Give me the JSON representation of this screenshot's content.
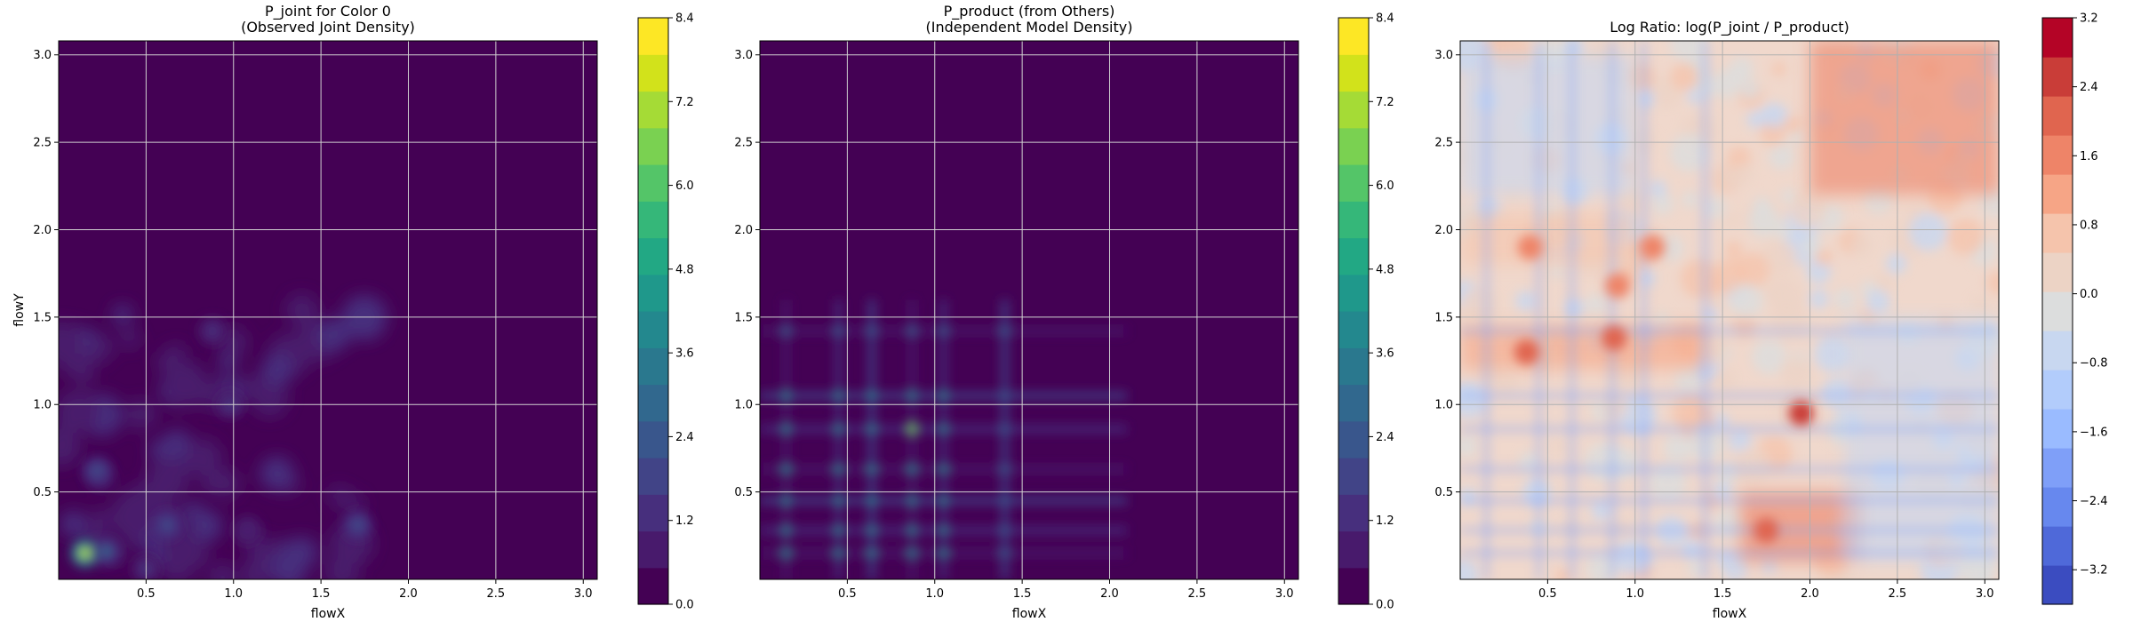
{
  "chart_data": [
    {
      "type": "heatmap",
      "title": "P_joint for Color 0",
      "subtitle": "(Observed Joint Density)",
      "xlabel": "flowX",
      "ylabel": "flowY",
      "xlim": [
        0,
        3.08
      ],
      "ylim": [
        0,
        3.08
      ],
      "xticks": [
        "0.5",
        "1.0",
        "1.5",
        "2.0",
        "2.5",
        "3.0"
      ],
      "yticks": [
        "0.5",
        "1.0",
        "1.5",
        "2.0",
        "2.5",
        "3.0"
      ],
      "grid": true,
      "colormap": "viridis",
      "colorbar": {
        "min": 0,
        "max": 8.4,
        "ticks": [
          "0.0",
          "1.2",
          "2.4",
          "3.6",
          "4.8",
          "6.0",
          "7.2",
          "8.4"
        ]
      },
      "hotspots": [
        {
          "x": 0.15,
          "y": 0.15,
          "value": 8.0
        },
        {
          "x": 0.27,
          "y": 0.16,
          "value": 3.2
        },
        {
          "x": 0.22,
          "y": 0.62,
          "value": 2.4
        },
        {
          "x": 0.62,
          "y": 0.31,
          "value": 2.6
        },
        {
          "x": 1.71,
          "y": 0.31,
          "value": 2.4
        },
        {
          "x": 0.98,
          "y": 1.0,
          "value": 1.6
        },
        {
          "x": 0.88,
          "y": 1.42,
          "value": 1.4
        },
        {
          "x": 0.5,
          "y": 0.06,
          "value": 1.6
        },
        {
          "x": 1.08,
          "y": 0.28,
          "value": 1.3
        }
      ]
    },
    {
      "type": "heatmap",
      "title": "P_product (from Others)",
      "subtitle": "(Independent Model Density)",
      "xlabel": "flowX",
      "ylabel": "",
      "xlim": [
        0,
        3.08
      ],
      "ylim": [
        0,
        3.08
      ],
      "xticks": [
        "0.5",
        "1.0",
        "1.5",
        "2.0",
        "2.5",
        "3.0"
      ],
      "yticks": [
        "0.5",
        "1.0",
        "1.5",
        "2.0",
        "2.5",
        "3.0"
      ],
      "grid": true,
      "colormap": "viridis",
      "colorbar": {
        "min": 0,
        "max": 8.4,
        "ticks": [
          "0.0",
          "1.2",
          "2.4",
          "3.6",
          "4.8",
          "6.0",
          "7.2",
          "8.4"
        ]
      },
      "x_marginal_peaks": [
        0.15,
        0.45,
        0.64,
        0.87,
        1.05,
        1.4
      ],
      "y_marginal_peaks": [
        0.15,
        0.28,
        0.45,
        0.63,
        0.86,
        1.05,
        1.42
      ],
      "peak": {
        "x": 0.87,
        "y": 0.86,
        "value": 6.5
      }
    },
    {
      "type": "heatmap",
      "title": "Log Ratio: log(P_joint / P_product)",
      "subtitle": "",
      "xlabel": "flowX",
      "ylabel": "",
      "xlim": [
        0,
        3.08
      ],
      "ylim": [
        0,
        3.08
      ],
      "xticks": [
        "0.5",
        "1.0",
        "1.5",
        "2.0",
        "2.5",
        "3.0"
      ],
      "yticks": [
        "0.5",
        "1.0",
        "1.5",
        "2.0",
        "2.5",
        "3.0"
      ],
      "grid": true,
      "colormap": "coolwarm",
      "colorbar": {
        "min": -3.6,
        "max": 3.2,
        "ticks": [
          "3.2",
          "2.4",
          "1.6",
          "0.8",
          "0.0",
          "−0.8",
          "−1.6",
          "−2.4",
          "−3.2"
        ]
      },
      "regions": [
        {
          "x": [
            2.0,
            3.08
          ],
          "y": [
            2.2,
            3.08
          ],
          "value": 1.6
        },
        {
          "x": [
            1.6,
            2.3
          ],
          "y": [
            0.1,
            0.5
          ],
          "value": 1.4
        },
        {
          "x": [
            0.0,
            1.4
          ],
          "y": [
            1.2,
            1.45
          ],
          "value": 1.0
        },
        {
          "x": [
            0.0,
            1.0
          ],
          "y": [
            1.8,
            2.1
          ],
          "value": 0.9
        },
        {
          "x": [
            2.2,
            3.08
          ],
          "y": [
            0.1,
            1.5
          ],
          "value": -0.6
        },
        {
          "x": [
            0.0,
            1.0
          ],
          "y": [
            2.2,
            3.0
          ],
          "value": -0.5
        }
      ],
      "hotspots": [
        {
          "x": 1.95,
          "y": 0.95,
          "value": 2.4
        },
        {
          "x": 1.75,
          "y": 0.28,
          "value": 2.2
        },
        {
          "x": 0.38,
          "y": 1.3,
          "value": 2.0
        },
        {
          "x": 0.88,
          "y": 1.38,
          "value": 2.0
        },
        {
          "x": 0.9,
          "y": 1.68,
          "value": 1.8
        },
        {
          "x": 1.1,
          "y": 1.9,
          "value": 1.8
        },
        {
          "x": 0.4,
          "y": 1.9,
          "value": 1.5
        }
      ]
    }
  ]
}
